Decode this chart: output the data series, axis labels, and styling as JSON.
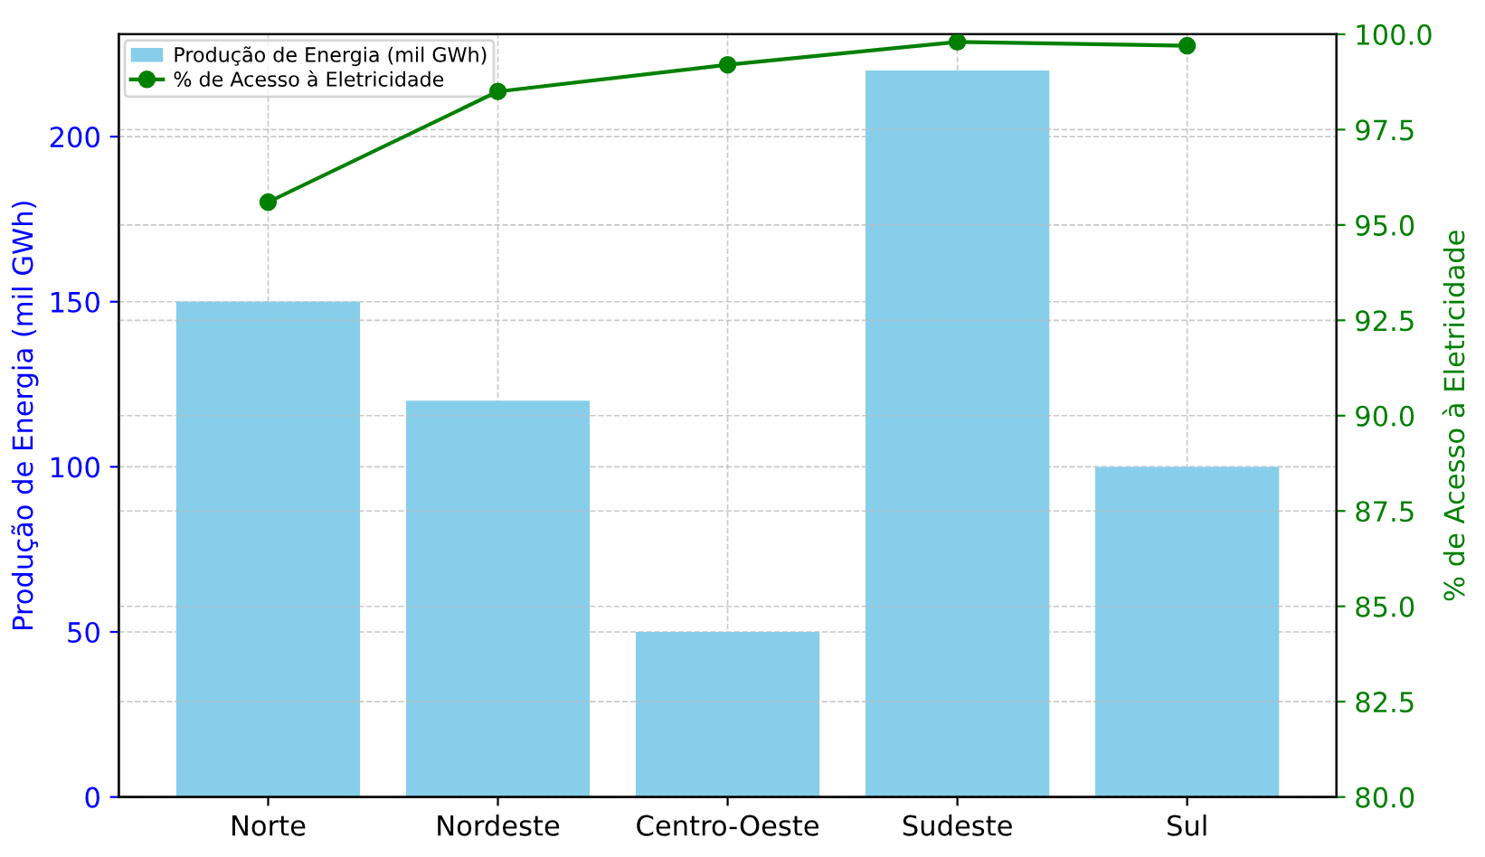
{
  "chart_data": {
    "type": "bar",
    "categories": [
      "Norte",
      "Nordeste",
      "Centro-Oeste",
      "Sudeste",
      "Sul"
    ],
    "series": [
      {
        "name": "Produção de Energia (mil GWh)",
        "color": "#87ceeb",
        "values": [
          150,
          120,
          50,
          220,
          100
        ]
      },
      {
        "name": "% de Acesso à Eletricidade",
        "type": "line",
        "axis": "y2",
        "color": "#008000",
        "marker": "circle",
        "values": [
          95.6,
          98.5,
          99.2,
          99.8,
          99.7
        ]
      }
    ],
    "ylabel": "Produção de Energia (mil GWh)",
    "y2label": "% de Acesso à Eletricidade",
    "ylim": [
      0,
      231
    ],
    "yticks": [
      0,
      50,
      100,
      150,
      200
    ],
    "y2lim": [
      80,
      100
    ],
    "y2ticks": [
      {
        "value": 80,
        "label": "80.0"
      },
      82.5,
      {
        "value": 85,
        "label": "85.0"
      },
      87.5,
      {
        "value": 90,
        "label": "90.0"
      },
      92.5,
      {
        "value": 95,
        "label": "95.0"
      },
      97.5,
      {
        "value": 100,
        "label": "100.0"
      }
    ],
    "grid": true,
    "legend": "top left"
  }
}
